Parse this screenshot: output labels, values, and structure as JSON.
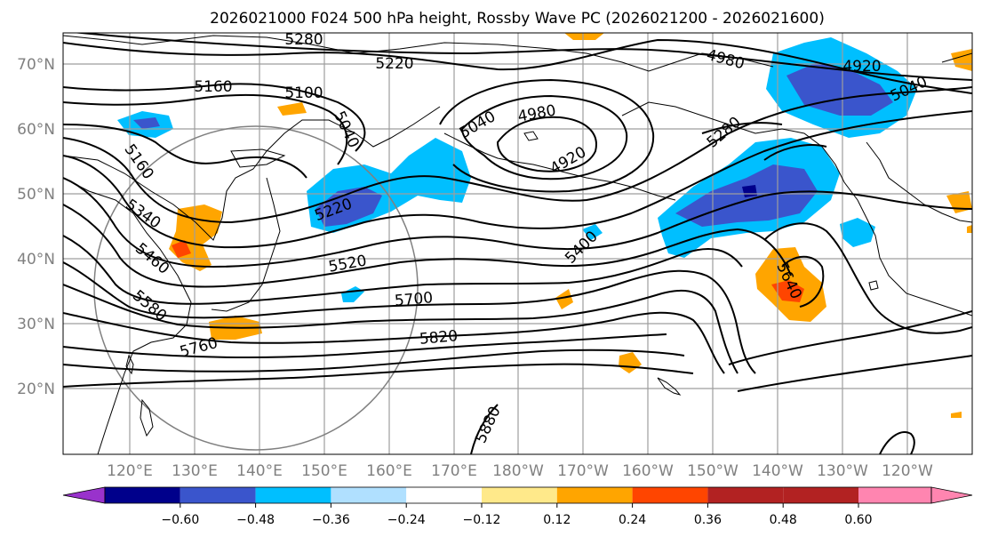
{
  "title": "2026021000 F024 500 hPa height, Rossby Wave PC (2026021200 - 2026021600)",
  "lat_labels": [
    "70°N",
    "60°N",
    "50°N",
    "40°N",
    "30°N",
    "20°N"
  ],
  "lon_labels": [
    "120°E",
    "130°E",
    "140°E",
    "150°E",
    "160°E",
    "170°E",
    "180°W",
    "170°W",
    "160°W",
    "150°W",
    "140°W",
    "130°W",
    "120°W"
  ],
  "colorbar": {
    "ticks": [
      "−0.60",
      "−0.48",
      "−0.36",
      "−0.24",
      "−0.12",
      "0.12",
      "0.24",
      "0.36",
      "0.48",
      "0.60"
    ],
    "colors": [
      "#9932cc",
      "#00008b",
      "#3a55cc",
      "#00bfff",
      "#b0e0ff",
      "#ffffff",
      "#ffe98a",
      "#ffa500",
      "#ff4500",
      "#b22222",
      "#ff85b0"
    ]
  },
  "contour_labels": [
    "5280",
    "5220",
    "5160",
    "5100",
    "5040",
    "4980",
    "4920",
    "5040",
    "5160",
    "5340",
    "5460",
    "5580",
    "5760",
    "5220",
    "5520",
    "5700",
    "5820",
    "5040",
    "4980",
    "4920",
    "5400",
    "5880",
    "5640",
    "5280"
  ]
}
